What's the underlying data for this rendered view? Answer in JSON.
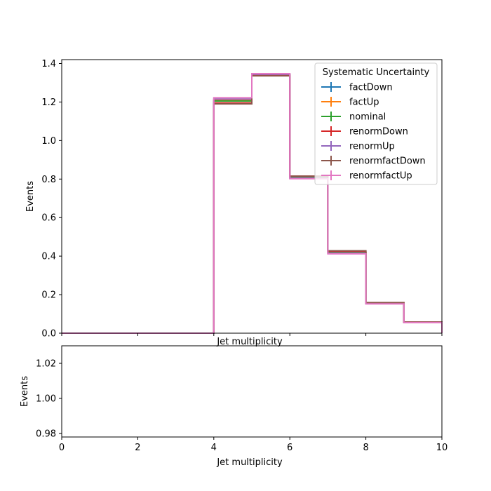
{
  "chart_data": [
    {
      "type": "step",
      "xlabel": "Jet multiplicity",
      "ylabel": "Events",
      "xlim": [
        0,
        10
      ],
      "ylim": [
        0,
        1.42
      ],
      "x_ticks": [
        0,
        2,
        4,
        6,
        8,
        10
      ],
      "y_ticks": [
        0.0,
        0.2,
        0.4,
        0.6,
        0.8,
        1.0,
        1.2,
        1.4
      ],
      "y_tick_labels": [
        "0.0",
        "0.2",
        "0.4",
        "0.6",
        "0.8",
        "1.0",
        "1.2",
        "1.4"
      ],
      "bin_edges": [
        0,
        1,
        2,
        3,
        4,
        5,
        6,
        7,
        8,
        9,
        10
      ],
      "legend": {
        "title": "Systematic Uncertainty",
        "placement": "top-right"
      },
      "series": [
        {
          "name": "factDown",
          "color": "#1f77b4",
          "values": [
            0,
            0,
            0,
            0,
            1.205,
            1.343,
            0.81,
            0.42,
            0.155,
            0.057
          ]
        },
        {
          "name": "factUp",
          "color": "#ff7f0e",
          "values": [
            0,
            0,
            0,
            0,
            1.21,
            1.341,
            0.808,
            0.418,
            0.154,
            0.056
          ]
        },
        {
          "name": "nominal",
          "color": "#2ca02c",
          "values": [
            0,
            0,
            0,
            0,
            1.205,
            1.34,
            0.81,
            0.42,
            0.155,
            0.057
          ]
        },
        {
          "name": "renormDown",
          "color": "#d62728",
          "values": [
            0,
            0,
            0,
            0,
            1.195,
            1.338,
            0.815,
            0.425,
            0.158,
            0.058
          ]
        },
        {
          "name": "renormUp",
          "color": "#9467bd",
          "values": [
            0,
            0,
            0,
            0,
            1.215,
            1.344,
            0.805,
            0.415,
            0.153,
            0.056
          ]
        },
        {
          "name": "renormfactDown",
          "color": "#8c564b",
          "values": [
            0,
            0,
            0,
            0,
            1.19,
            1.336,
            0.815,
            0.428,
            0.159,
            0.058
          ]
        },
        {
          "name": "renormfactUp",
          "color": "#e377c2",
          "values": [
            0,
            0,
            0,
            0,
            1.222,
            1.347,
            0.802,
            0.412,
            0.152,
            0.055
          ]
        }
      ]
    },
    {
      "type": "line",
      "xlabel": "Jet multiplicity",
      "ylabel": "Events",
      "xlim": [
        0,
        10
      ],
      "ylim": [
        0.978,
        1.03
      ],
      "x_ticks": [
        0,
        2,
        4,
        6,
        8,
        10
      ],
      "y_ticks": [
        0.98,
        1.0,
        1.02
      ],
      "y_tick_labels": [
        "0.98",
        "1.00",
        "1.02"
      ],
      "series": []
    }
  ]
}
